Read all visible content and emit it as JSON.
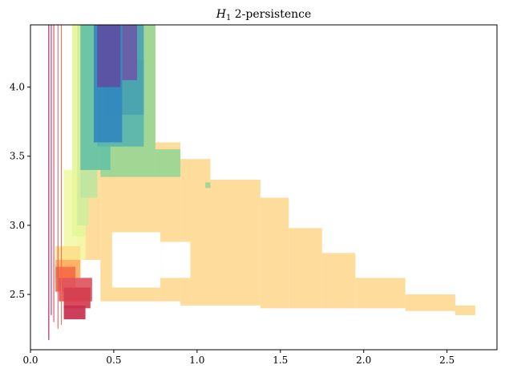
{
  "chart_data": {
    "type": "heatmap",
    "title": "H1 2-persistence",
    "title_main": "H",
    "title_sub": "1",
    "title_rest": " 2-persistence",
    "xlim": [
      0.0,
      2.8
    ],
    "ylim": [
      2.1,
      4.45
    ],
    "xticks": [
      0.0,
      0.5,
      1.0,
      1.5,
      2.0,
      2.5
    ],
    "xtick_labels": [
      "0.0",
      "0.5",
      "1.0",
      "1.5",
      "2.0",
      "2.5"
    ],
    "yticks": [
      2.5,
      3.0,
      3.5,
      4.0
    ],
    "ytick_labels": [
      "2.5",
      "3.0",
      "3.5",
      "4.0"
    ],
    "grid": false,
    "legend": "none",
    "colormap": "Spectral",
    "regions": [
      {
        "color": "#fdd994",
        "x0": 0.42,
        "x1": 0.75,
        "y0": 2.45,
        "y1": 4.45
      },
      {
        "color": "#fdd994",
        "x0": 0.75,
        "x1": 0.9,
        "y0": 2.45,
        "y1": 3.6
      },
      {
        "color": "#fdd994",
        "x0": 0.9,
        "x1": 1.08,
        "y0": 2.42,
        "y1": 3.48
      },
      {
        "color": "#fdd994",
        "x0": 1.08,
        "x1": 1.38,
        "y0": 2.42,
        "y1": 3.33
      },
      {
        "color": "#fdd994",
        "x0": 1.38,
        "x1": 1.55,
        "y0": 2.4,
        "y1": 3.2
      },
      {
        "color": "#fdd994",
        "x0": 1.55,
        "x1": 1.75,
        "y0": 2.4,
        "y1": 2.98
      },
      {
        "color": "#fdd994",
        "x0": 1.75,
        "x1": 1.95,
        "y0": 2.4,
        "y1": 2.8
      },
      {
        "color": "#fdd994",
        "x0": 1.95,
        "x1": 2.25,
        "y0": 2.4,
        "y1": 2.62
      },
      {
        "color": "#fdd994",
        "x0": 2.25,
        "x1": 2.55,
        "y0": 2.38,
        "y1": 2.5
      },
      {
        "color": "#fdd994",
        "x0": 2.55,
        "x1": 2.67,
        "y0": 2.35,
        "y1": 2.42
      },
      {
        "color": "#fdd994",
        "x0": 0.28,
        "x1": 0.42,
        "y0": 2.75,
        "y1": 4.45
      },
      {
        "color": "#f2f9a8",
        "x0": 0.2,
        "x1": 0.33,
        "y0": 2.75,
        "y1": 3.4
      },
      {
        "color": "#e7f59a",
        "x0": 0.25,
        "x1": 0.33,
        "y0": 2.92,
        "y1": 4.45
      },
      {
        "color": "#d2ed9d",
        "x0": 0.28,
        "x1": 0.35,
        "y0": 3.0,
        "y1": 4.45
      },
      {
        "color": "#bfe5a0",
        "x0": 0.3,
        "x1": 0.4,
        "y0": 3.2,
        "y1": 4.45
      },
      {
        "color": "#99d594",
        "x0": 0.42,
        "x1": 0.75,
        "y0": 3.35,
        "y1": 4.45
      },
      {
        "color": "#99d594",
        "x0": 0.75,
        "x1": 0.9,
        "y0": 3.35,
        "y1": 3.55
      },
      {
        "color": "#99d594",
        "x0": 1.05,
        "x1": 1.08,
        "y0": 3.27,
        "y1": 3.31
      },
      {
        "color": "#66c2a5",
        "x0": 0.3,
        "x1": 0.48,
        "y0": 3.4,
        "y1": 4.45
      },
      {
        "color": "#5ab4ac",
        "x0": 0.4,
        "x1": 0.68,
        "y0": 3.57,
        "y1": 4.2
      },
      {
        "color": "#4aa3b0",
        "x0": 0.45,
        "x1": 0.68,
        "y0": 3.8,
        "y1": 4.45
      },
      {
        "color": "#3288bd",
        "x0": 0.38,
        "x1": 0.55,
        "y0": 3.6,
        "y1": 4.45
      },
      {
        "color": "#5e4fa2",
        "x0": 0.4,
        "x1": 0.54,
        "y0": 4.0,
        "y1": 4.45
      },
      {
        "color": "#6a5aa8",
        "x0": 0.55,
        "x1": 0.64,
        "y0": 4.05,
        "y1": 4.45
      },
      {
        "color": "#fee08b",
        "x0": 0.15,
        "x1": 0.3,
        "y0": 2.7,
        "y1": 2.85
      },
      {
        "color": "#fdae61",
        "x0": 0.15,
        "x1": 0.3,
        "y0": 2.62,
        "y1": 2.75
      },
      {
        "color": "#f46d43",
        "x0": 0.15,
        "x1": 0.27,
        "y0": 2.52,
        "y1": 2.7
      },
      {
        "color": "#e05560",
        "x0": 0.17,
        "x1": 0.37,
        "y0": 2.45,
        "y1": 2.62
      },
      {
        "color": "#d53e4f",
        "x0": 0.2,
        "x1": 0.36,
        "y0": 2.4,
        "y1": 2.55
      },
      {
        "color": "#c9304f",
        "x0": 0.2,
        "x1": 0.33,
        "y0": 2.32,
        "y1": 2.42
      },
      {
        "color": "#ffffff",
        "x0": 0.49,
        "x1": 0.78,
        "y0": 2.55,
        "y1": 2.95
      },
      {
        "color": "#ffffff",
        "x0": 0.78,
        "x1": 0.96,
        "y0": 2.62,
        "y1": 2.88
      }
    ],
    "lines": [
      {
        "color": "#9e0142",
        "x": 0.11,
        "y0": 2.17,
        "y1": 4.45
      },
      {
        "color": "#c2185b",
        "x": 0.125,
        "y0": 2.35,
        "y1": 4.45
      },
      {
        "color": "#d53e4f",
        "x": 0.14,
        "y0": 2.3,
        "y1": 4.45
      },
      {
        "color": "#e05560",
        "x": 0.165,
        "y0": 2.25,
        "y1": 4.45
      },
      {
        "color": "#f46d43",
        "x": 0.185,
        "y0": 2.28,
        "y1": 4.45
      }
    ]
  }
}
